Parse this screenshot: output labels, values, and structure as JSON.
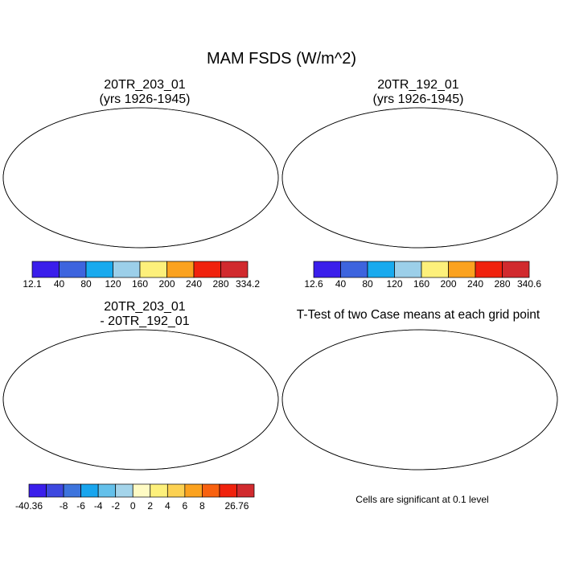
{
  "figure": {
    "title": "MAM FSDS (W/m^2)"
  },
  "panels": [
    {
      "id": "case1",
      "title_line1": "20TR_203_01",
      "title_line2": "(yrs 1926-1945)",
      "colorbar": {
        "colors": [
          "#3a1eeb",
          "#3d64de",
          "#19aaee",
          "#9ccfe9",
          "#fdf07b",
          "#fba21f",
          "#f0220d",
          "#d12a2e"
        ],
        "labels": [
          "12.1",
          "40",
          "80",
          "120",
          "160",
          "200",
          "240",
          "280",
          "334.2"
        ]
      }
    },
    {
      "id": "case2",
      "title_line1": "20TR_192_01",
      "title_line2": "(yrs 1926-1945)",
      "colorbar": {
        "colors": [
          "#3a1eeb",
          "#3d64de",
          "#19aaee",
          "#9ccfe9",
          "#fdf07b",
          "#fba21f",
          "#f0220d",
          "#d12a2e"
        ],
        "labels": [
          "12.6",
          "40",
          "80",
          "120",
          "160",
          "200",
          "240",
          "280",
          "340.6"
        ]
      }
    },
    {
      "id": "difference",
      "title_line1": "20TR_203_01",
      "title_line2": "- 20TR_192_01",
      "colorbar": {
        "colors": [
          "#3a1eeb",
          "#3d48e0",
          "#3d74dd",
          "#18a5ee",
          "#64c0ea",
          "#a4d4ea",
          "#fffbc4",
          "#fdf07b",
          "#fcd152",
          "#fba21f",
          "#f8610f",
          "#f0220d",
          "#d12a2e"
        ],
        "labels": [
          "-40.36",
          "",
          "-8",
          "-6",
          "-4",
          "-2",
          "0",
          "2",
          "4",
          "6",
          "8",
          "",
          "26.76"
        ]
      }
    },
    {
      "id": "ttest",
      "title_line1": "T-Test of two Case means at each grid point",
      "caption": "Cells are significant at 0.1 level"
    }
  ],
  "colors": {
    "significant": "#ee0000",
    "coastline": "#000000",
    "antarctica": "#3a1eeb",
    "diff_antarctica": "#a4d4ea"
  }
}
